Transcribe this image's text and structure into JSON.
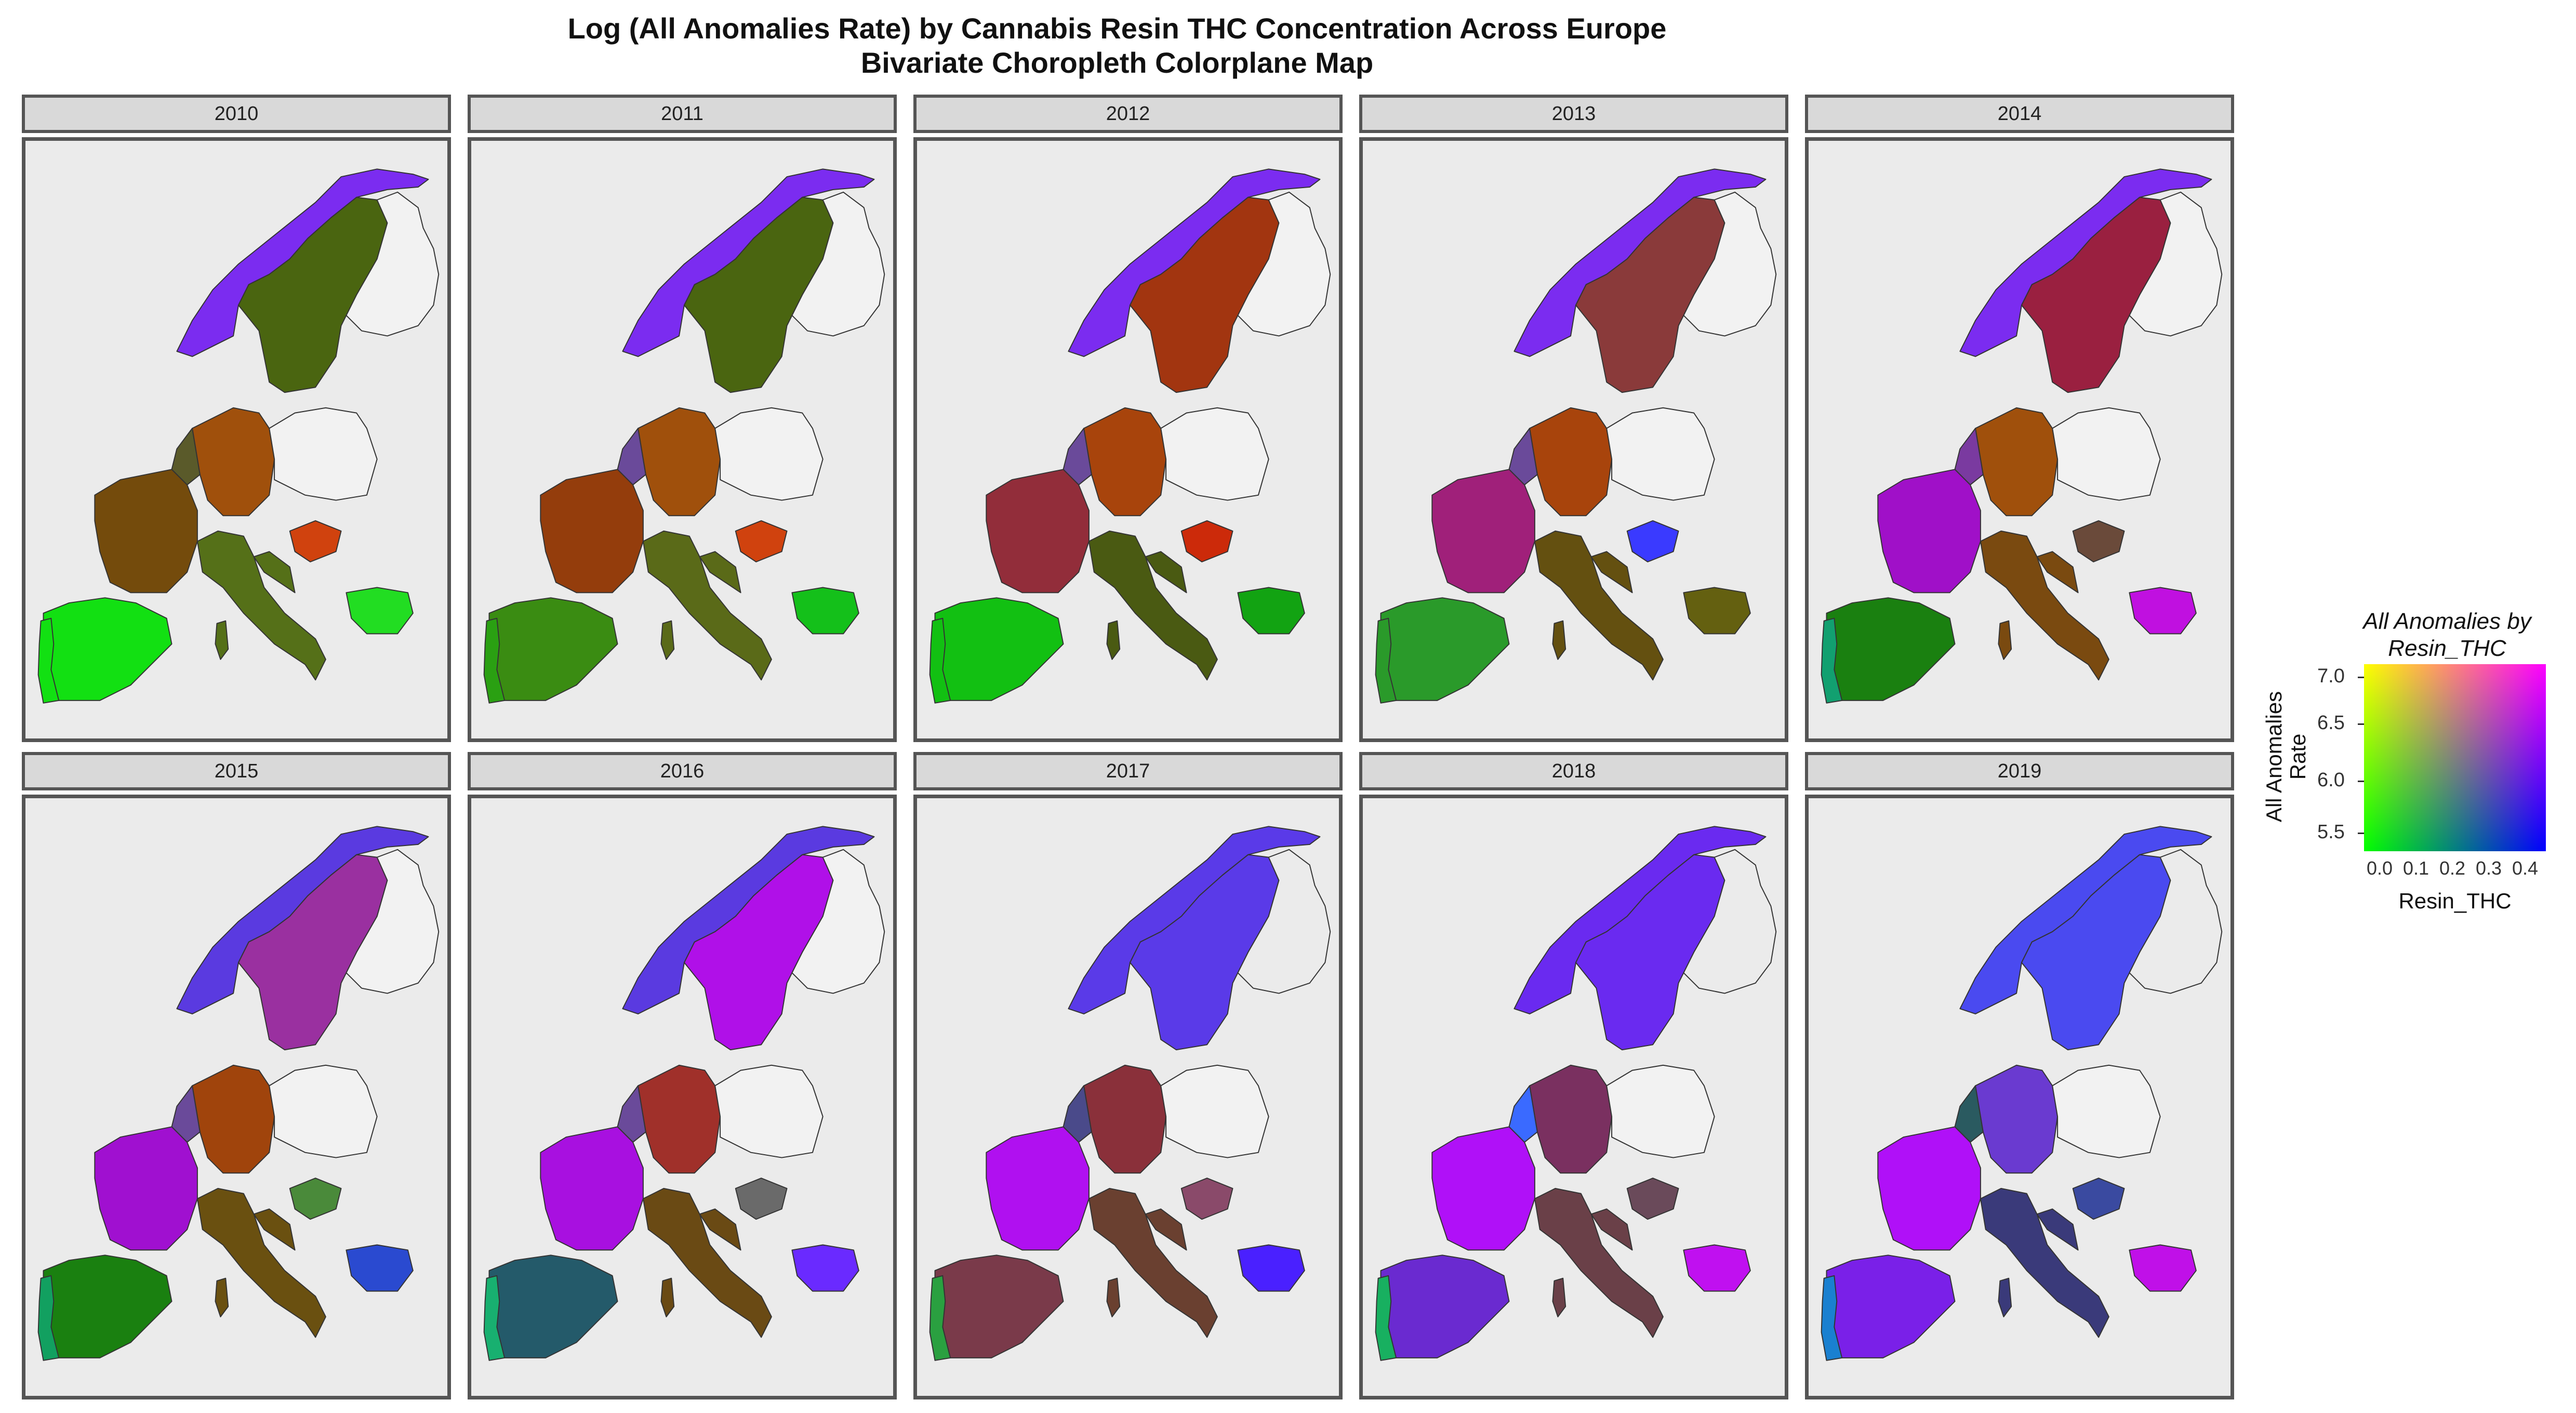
{
  "title": "Log (All Anomalies Rate) by Cannabis Resin THC Concentration Across Europe",
  "subtitle": "Bivariate Choropleth Colorplane Map",
  "panels": [
    {
      "year": "2010",
      "colors": {
        "norway": "#7b2cf0",
        "sweden": "#4a6510",
        "finland": "#f2f2f2",
        "germany": "#a0500c",
        "poland": "#f2f2f2",
        "benelux": "#5a5a2a",
        "france": "#744b0c",
        "hungary": "#d0420e",
        "bulgaria": "#22dd22",
        "spain": "#12e012",
        "portugal": "#12e012",
        "italy": "#557018"
      }
    },
    {
      "year": "2011",
      "colors": {
        "norway": "#7b2cf0",
        "sweden": "#4a6510",
        "finland": "#f2f2f2",
        "germany": "#a0500c",
        "poland": "#f2f2f2",
        "benelux": "#6a4a9a",
        "france": "#943d0c",
        "hungary": "#d0420e",
        "bulgaria": "#14c01a",
        "spain": "#3a8c12",
        "portugal": "#2aa012",
        "italy": "#5a6a18"
      }
    },
    {
      "year": "2012",
      "colors": {
        "norway": "#7b2cf0",
        "sweden": "#a23510",
        "finland": "#f2f2f2",
        "germany": "#a8440c",
        "poland": "#f2f2f2",
        "benelux": "#6a4a9a",
        "france": "#922d3a",
        "hungary": "#cc2a0a",
        "bulgaria": "#12a312",
        "spain": "#12c012",
        "portugal": "#12c012",
        "italy": "#4a5a12"
      }
    },
    {
      "year": "2013",
      "colors": {
        "norway": "#7b2cf0",
        "sweden": "#8a3a3a",
        "finland": "#f2f2f2",
        "germany": "#a8440c",
        "poland": "#f2f2f2",
        "benelux": "#6a4a9a",
        "france": "#a0207a",
        "hungary": "#3a3aff",
        "bulgaria": "#646010",
        "spain": "#2a9a2a",
        "portugal": "#2a9a2a",
        "italy": "#645010"
      }
    },
    {
      "year": "2014",
      "colors": {
        "norway": "#7b2cf0",
        "sweden": "#9a2040",
        "finland": "#f2f2f2",
        "germany": "#a0500c",
        "poland": "#f2f2f2",
        "benelux": "#7a3aa0",
        "france": "#a010c8",
        "hungary": "#6a4a3a",
        "bulgaria": "#c010e0",
        "spain": "#1a8010",
        "portugal": "#12a070",
        "italy": "#7a4a10"
      }
    },
    {
      "year": "2015",
      "colors": {
        "norway": "#5a3ae0",
        "sweden": "#9a30a0",
        "finland": "#f2f2f2",
        "germany": "#a0440c",
        "poland": "#f2f2f2",
        "benelux": "#6a4a9a",
        "france": "#a010d0",
        "hungary": "#4a8a3a",
        "bulgaria": "#2a4ad0",
        "spain": "#1a8010",
        "portugal": "#12a060",
        "italy": "#6a5010"
      }
    },
    {
      "year": "2016",
      "colors": {
        "norway": "#5a3ae0",
        "sweden": "#b010e8",
        "finland": "#f2f2f2",
        "germany": "#a0302a",
        "poland": "#f2f2f2",
        "benelux": "#6a4a9a",
        "france": "#a810e0",
        "hungary": "#6a6a6a",
        "bulgaria": "#6a2aff",
        "spain": "#245a6a",
        "portugal": "#18b070",
        "italy": "#6a4a14"
      }
    },
    {
      "year": "2017",
      "colors": {
        "norway": "#5a3ae8",
        "sweden": "#5a3ae8",
        "finland": "#ebebeb",
        "germany": "#8a303a",
        "poland": "#f2f2f2",
        "benelux": "#4a4a8a",
        "france": "#b010f0",
        "hungary": "#8a4a6a",
        "bulgaria": "#4a20ff",
        "spain": "#7a3a4a",
        "portugal": "#2aa040",
        "italy": "#6a4030"
      }
    },
    {
      "year": "2018",
      "colors": {
        "norway": "#6a2af0",
        "sweden": "#6a2af0",
        "finland": "#ebebeb",
        "germany": "#7a3060",
        "poland": "#f2f2f2",
        "benelux": "#3a6aff",
        "france": "#b010f8",
        "hungary": "#6a4a5a",
        "bulgaria": "#c010f0",
        "spain": "#6a2ad0",
        "portugal": "#18b060",
        "italy": "#6a4048"
      }
    },
    {
      "year": "2019",
      "colors": {
        "norway": "#4a4af0",
        "sweden": "#4a4af0",
        "finland": "#ebebeb",
        "germany": "#6a3ad0",
        "poland": "#f2f2f2",
        "benelux": "#2a5a60",
        "france": "#b010f8",
        "hungary": "#3a4aa0",
        "bulgaria": "#c010e8",
        "spain": "#7a20e8",
        "portugal": "#1a80d0",
        "italy": "#3a3a7a"
      }
    }
  ],
  "legend": {
    "title": "All Anomalies by Resin_THC",
    "y_label": "All Anomalies Rate",
    "x_label": "Resin_THC",
    "y_ticks": [
      "7.0",
      "6.5",
      "6.0",
      "5.5"
    ],
    "x_ticks": [
      "0.0",
      "0.1",
      "0.2",
      "0.3",
      "0.4"
    ]
  }
}
